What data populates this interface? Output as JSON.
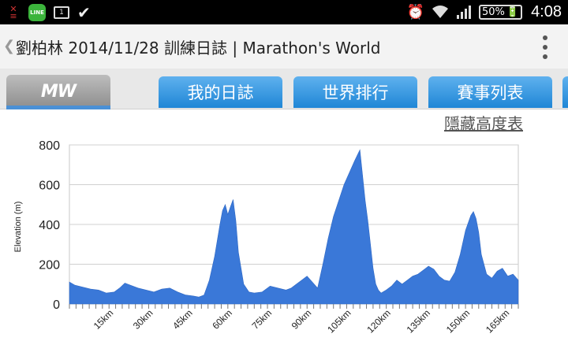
{
  "status_bar": {
    "battery": "50%",
    "time": "4:08",
    "notification_count": "1"
  },
  "title_bar": {
    "title": "劉柏林 2014/11/28 訓練日誌 | Marathon's World"
  },
  "nav": {
    "logo_text": "MW",
    "tabs": [
      {
        "label": "我的日誌"
      },
      {
        "label": "世界排行"
      },
      {
        "label": "賽事列表"
      }
    ]
  },
  "hide_link": "隱藏高度表",
  "chart_data": {
    "type": "area",
    "title": "",
    "xlabel": "",
    "ylabel": "Elevation (m)",
    "ylim": [
      0,
      800
    ],
    "yticks": [
      0,
      200,
      400,
      600,
      800
    ],
    "xlim": [
      0,
      170
    ],
    "xticks": [
      "15km",
      "30km",
      "45km",
      "60km",
      "75km",
      "90km",
      "105km",
      "120km",
      "135km",
      "150km",
      "165km"
    ],
    "grid": true,
    "legend": "none",
    "color": "#3a78d8",
    "x": [
      0,
      2,
      5,
      8,
      11,
      14,
      17,
      19,
      21,
      23,
      26,
      29,
      32,
      35,
      38,
      41,
      44,
      47,
      49,
      51,
      53,
      55,
      57,
      58,
      59,
      60,
      61,
      62,
      63,
      64,
      66,
      68,
      70,
      73,
      76,
      79,
      82,
      84,
      86,
      88,
      90,
      92,
      94,
      96,
      98,
      100,
      102,
      104,
      106,
      108,
      110,
      111,
      112,
      113,
      114,
      115,
      116,
      117,
      118,
      120,
      122,
      124,
      126,
      128,
      130,
      132,
      134,
      136,
      138,
      140,
      142,
      144,
      146,
      148,
      150,
      152,
      153,
      154,
      155,
      156,
      158,
      160,
      162,
      164,
      166,
      168,
      170
    ],
    "y": [
      110,
      95,
      85,
      75,
      70,
      55,
      60,
      80,
      105,
      95,
      80,
      70,
      60,
      75,
      80,
      60,
      45,
      40,
      35,
      45,
      120,
      240,
      400,
      470,
      500,
      450,
      490,
      525,
      420,
      260,
      100,
      60,
      55,
      60,
      90,
      80,
      70,
      80,
      100,
      120,
      140,
      110,
      80,
      200,
      330,
      440,
      520,
      600,
      660,
      720,
      775,
      650,
      520,
      420,
      300,
      180,
      100,
      70,
      55,
      70,
      90,
      120,
      100,
      120,
      140,
      150,
      170,
      190,
      175,
      140,
      120,
      115,
      160,
      250,
      370,
      445,
      465,
      430,
      360,
      250,
      150,
      130,
      165,
      180,
      140,
      150,
      120
    ]
  }
}
